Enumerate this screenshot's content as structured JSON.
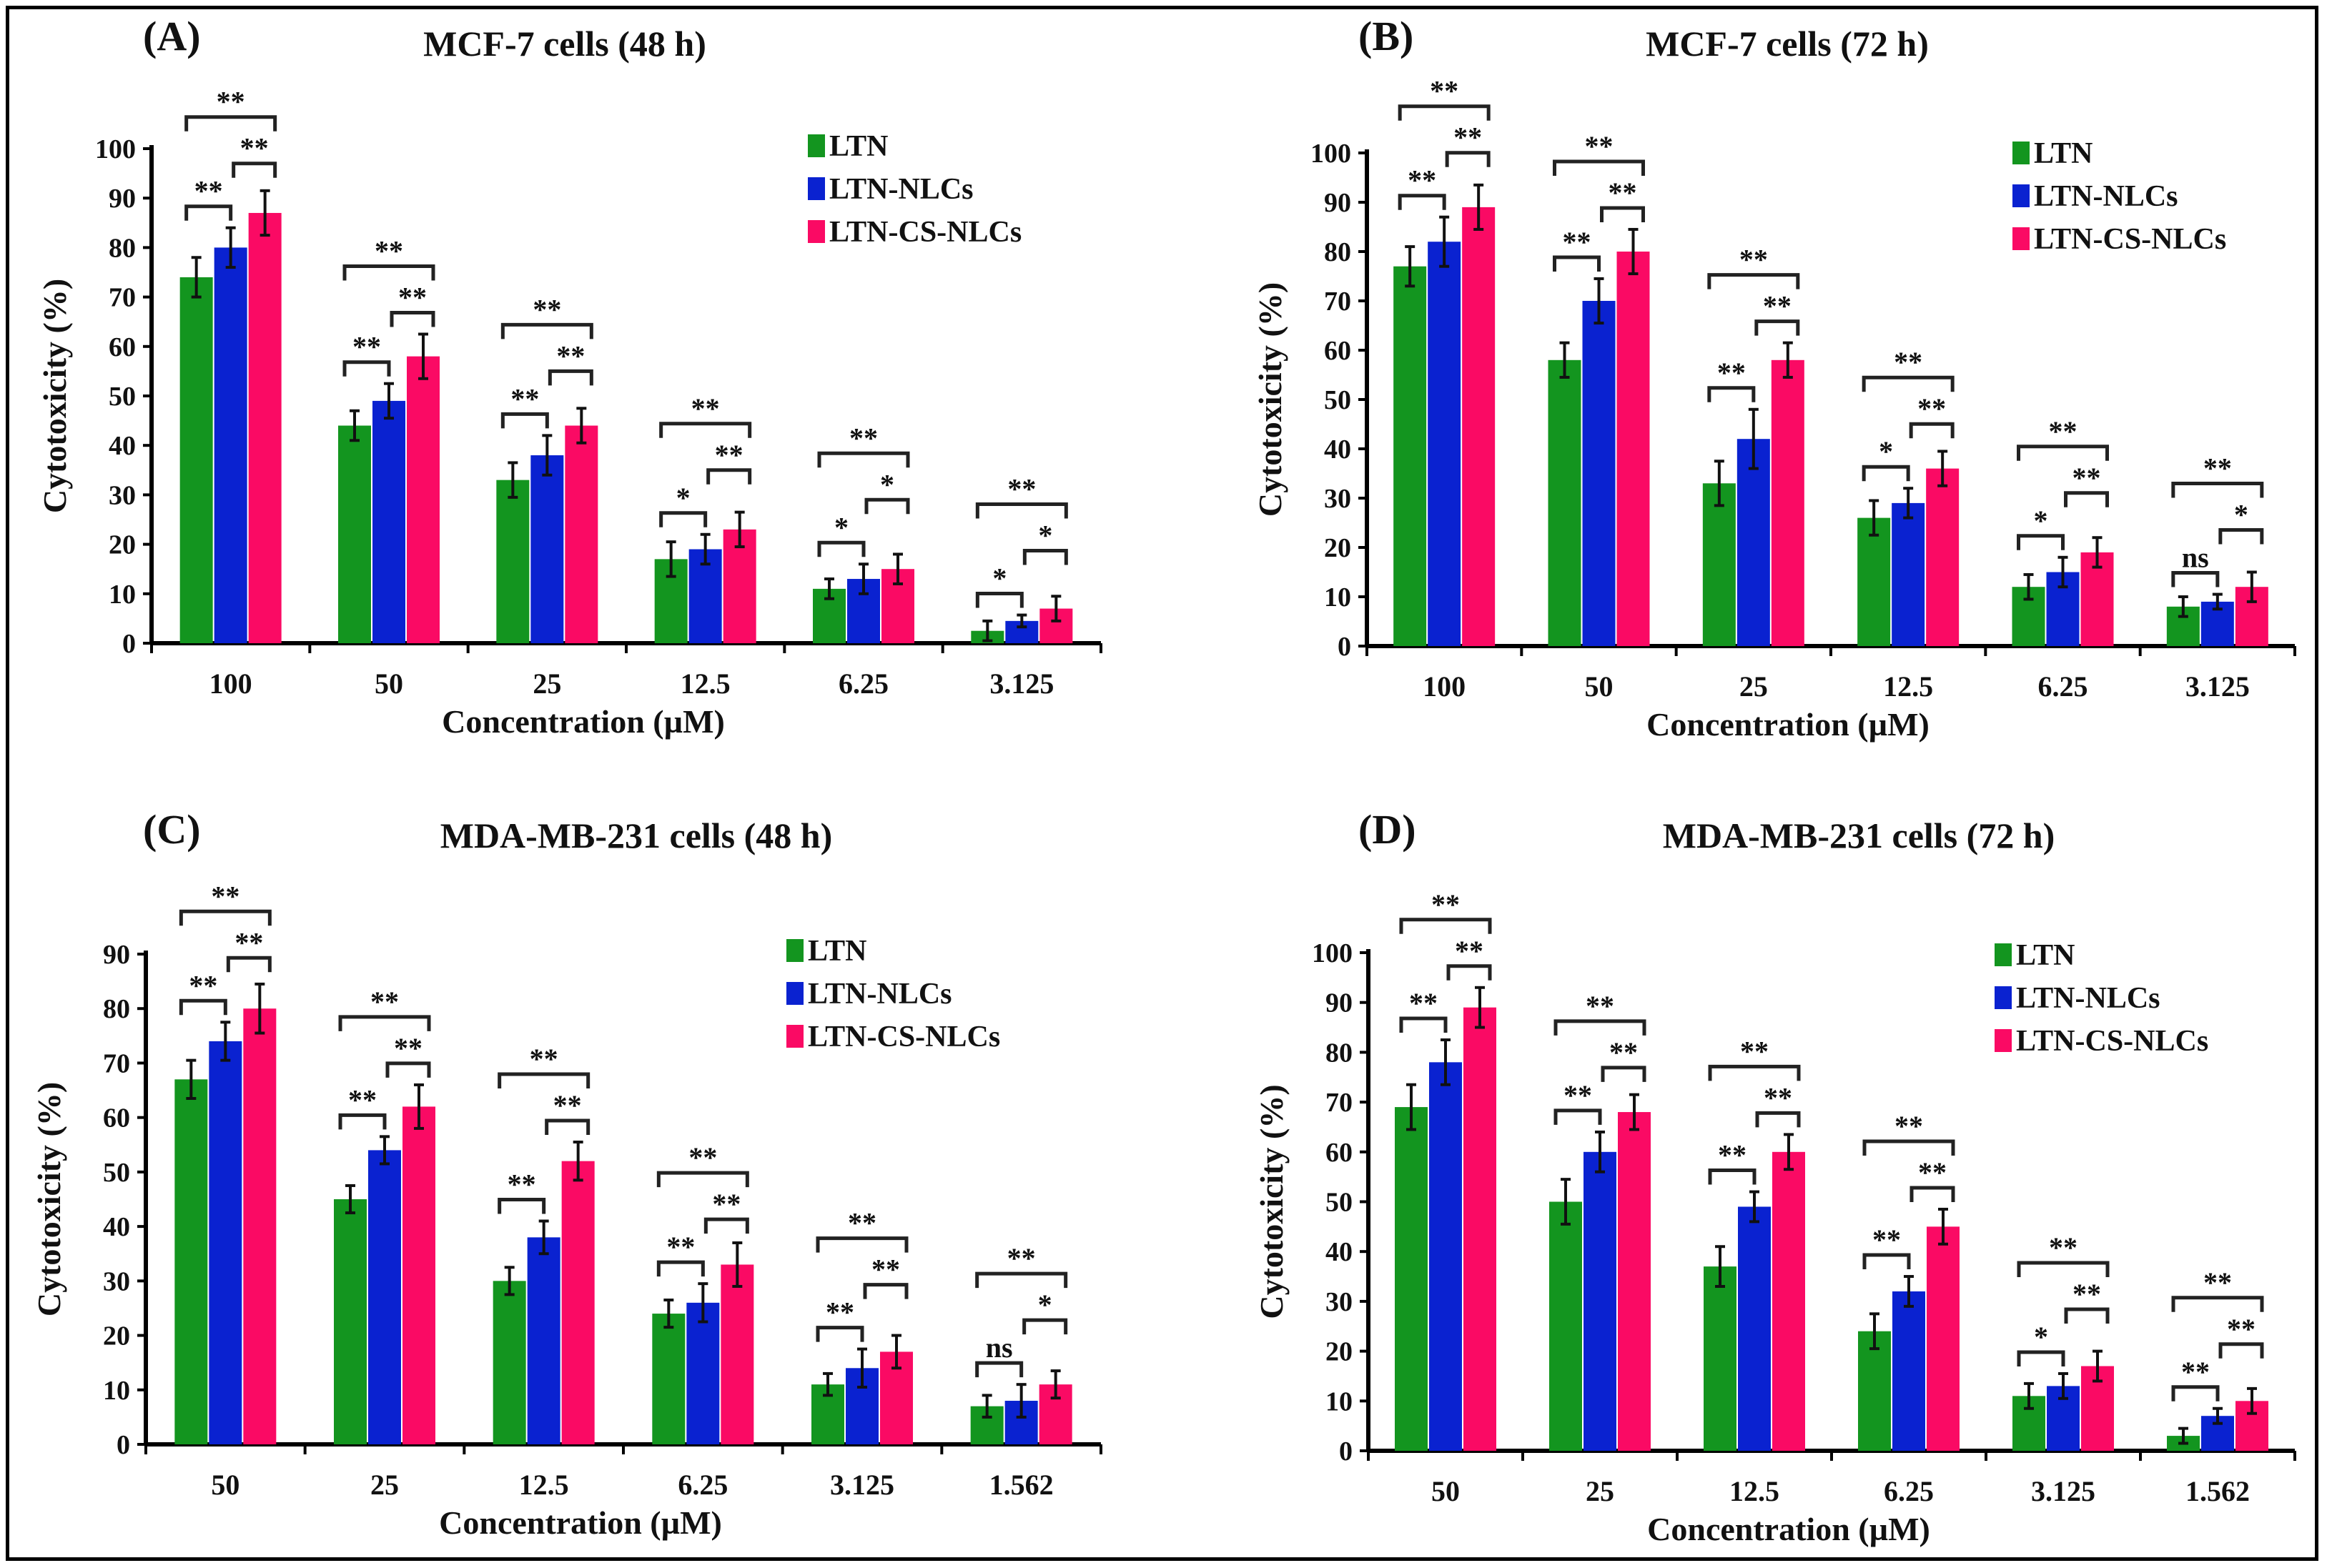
{
  "legend": [
    "LTN",
    "LTN-NLCs",
    "LTN-CS-NLCs"
  ],
  "colors": {
    "LTN": "#13951f",
    "LTN-NLCs": "#0a22d0",
    "LTN-CS-NLCs": "#fa0a64"
  },
  "chart_data": [
    {
      "type": "bar",
      "panel": "(A)",
      "title": "MCF-7 cells (48 h)",
      "xlabel": "Concentration (µM)",
      "ylabel": "Cytotoxicity (%)",
      "ylim": [
        0,
        100
      ],
      "yticks": [
        "0",
        "10",
        "20",
        "30",
        "40",
        "50",
        "60",
        "70",
        "80",
        "90",
        "100"
      ],
      "legend_position": "top-right",
      "categories": [
        "100",
        "50",
        "25",
        "12.5",
        "6.25",
        "3.125"
      ],
      "series": [
        {
          "name": "LTN",
          "values": [
            74,
            44,
            33,
            17,
            11,
            2.5
          ],
          "errors": [
            4,
            3,
            3.5,
            3.5,
            2,
            2
          ]
        },
        {
          "name": "LTN-NLCs",
          "values": [
            80,
            49,
            38,
            19,
            13,
            4.5
          ],
          "errors": [
            4,
            3.5,
            4,
            3,
            3,
            1.2
          ]
        },
        {
          "name": "LTN-CS-NLCs",
          "values": [
            87,
            58,
            44,
            23,
            15,
            7
          ],
          "errors": [
            4.5,
            4.5,
            3.5,
            3.5,
            3,
            2.5
          ]
        }
      ],
      "significance": [
        {
          "ltn_vs_nlc": "**",
          "nlc_vs_cs": "**",
          "ltn_vs_cs": "**"
        },
        {
          "ltn_vs_nlc": "**",
          "nlc_vs_cs": "**",
          "ltn_vs_cs": "**"
        },
        {
          "ltn_vs_nlc": "**",
          "nlc_vs_cs": "**",
          "ltn_vs_cs": "**"
        },
        {
          "ltn_vs_nlc": "*",
          "nlc_vs_cs": "**",
          "ltn_vs_cs": "**"
        },
        {
          "ltn_vs_nlc": "*",
          "nlc_vs_cs": "*",
          "ltn_vs_cs": "**"
        },
        {
          "ltn_vs_nlc": "*",
          "nlc_vs_cs": "*",
          "ltn_vs_cs": "**"
        }
      ]
    },
    {
      "type": "bar",
      "panel": "(B)",
      "title": "MCF-7 cells (72 h)",
      "xlabel": "Concentration (µM)",
      "ylabel": "Cytotoxicity (%)",
      "ylim": [
        0,
        100
      ],
      "yticks": [
        "0",
        "10",
        "20",
        "30",
        "40",
        "50",
        "60",
        "70",
        "80",
        "90",
        "100"
      ],
      "legend_position": "top-right",
      "categories": [
        "100",
        "50",
        "25",
        "12.5",
        "6.25",
        "3.125"
      ],
      "series": [
        {
          "name": "LTN",
          "values": [
            77,
            58,
            33,
            26,
            12,
            8
          ],
          "errors": [
            4,
            3.5,
            4.5,
            3.5,
            2.5,
            2
          ]
        },
        {
          "name": "LTN-NLCs",
          "values": [
            82,
            70,
            42,
            29,
            15,
            9
          ],
          "errors": [
            5,
            4.5,
            6,
            3,
            3,
            1.5
          ]
        },
        {
          "name": "LTN-CS-NLCs",
          "values": [
            89,
            80,
            58,
            36,
            19,
            12
          ],
          "errors": [
            4.5,
            4.5,
            3.5,
            3.5,
            3,
            3
          ]
        }
      ],
      "significance": [
        {
          "ltn_vs_nlc": "**",
          "nlc_vs_cs": "**",
          "ltn_vs_cs": "**"
        },
        {
          "ltn_vs_nlc": "**",
          "nlc_vs_cs": "**",
          "ltn_vs_cs": "**"
        },
        {
          "ltn_vs_nlc": "**",
          "nlc_vs_cs": "**",
          "ltn_vs_cs": "**"
        },
        {
          "ltn_vs_nlc": "*",
          "nlc_vs_cs": "**",
          "ltn_vs_cs": "**"
        },
        {
          "ltn_vs_nlc": "*",
          "nlc_vs_cs": "**",
          "ltn_vs_cs": "**"
        },
        {
          "ltn_vs_nlc": "ns",
          "nlc_vs_cs": "*",
          "ltn_vs_cs": "**"
        }
      ]
    },
    {
      "type": "bar",
      "panel": "(C)",
      "title": "MDA-MB-231 cells (48 h)",
      "xlabel": "Concentration (µM)",
      "ylabel": "Cytotoxicity (%)",
      "ylim": [
        0,
        90
      ],
      "yticks": [
        "0",
        "10",
        "20",
        "30",
        "40",
        "50",
        "60",
        "70",
        "80",
        "90"
      ],
      "legend_position": "top-right",
      "categories": [
        "50",
        "25",
        "12.5",
        "6.25",
        "3.125",
        "1.562"
      ],
      "series": [
        {
          "name": "LTN",
          "values": [
            67,
            45,
            30,
            24,
            11,
            7
          ],
          "errors": [
            3.5,
            2.5,
            2.5,
            2.5,
            2,
            2
          ]
        },
        {
          "name": "LTN-NLCs",
          "values": [
            74,
            54,
            38,
            26,
            14,
            8
          ],
          "errors": [
            3.5,
            2.5,
            3,
            3.5,
            3.5,
            3
          ]
        },
        {
          "name": "LTN-CS-NLCs",
          "values": [
            80,
            62,
            52,
            33,
            17,
            11
          ],
          "errors": [
            4.5,
            4,
            3.5,
            4,
            3,
            2.5
          ]
        }
      ],
      "significance": [
        {
          "ltn_vs_nlc": "**",
          "nlc_vs_cs": "**",
          "ltn_vs_cs": "**"
        },
        {
          "ltn_vs_nlc": "**",
          "nlc_vs_cs": "**",
          "ltn_vs_cs": "**"
        },
        {
          "ltn_vs_nlc": "**",
          "nlc_vs_cs": "**",
          "ltn_vs_cs": "**"
        },
        {
          "ltn_vs_nlc": "**",
          "nlc_vs_cs": "**",
          "ltn_vs_cs": "**"
        },
        {
          "ltn_vs_nlc": "**",
          "nlc_vs_cs": "**",
          "ltn_vs_cs": "**"
        },
        {
          "ltn_vs_nlc": "ns",
          "nlc_vs_cs": "*",
          "ltn_vs_cs": "**"
        }
      ]
    },
    {
      "type": "bar",
      "panel": "(D)",
      "title": "MDA-MB-231 cells (72 h)",
      "xlabel": "Concentration (µM)",
      "ylabel": "Cytotoxicity (%)",
      "ylim": [
        0,
        100
      ],
      "yticks": [
        "0",
        "10",
        "20",
        "30",
        "40",
        "50",
        "60",
        "70",
        "80",
        "90",
        "100"
      ],
      "legend_position": "top-right",
      "categories": [
        "50",
        "25",
        "12.5",
        "6.25",
        "3.125",
        "1.562"
      ],
      "series": [
        {
          "name": "LTN",
          "values": [
            69,
            50,
            37,
            24,
            11,
            3
          ],
          "errors": [
            4.5,
            4.5,
            4,
            3.5,
            2.5,
            1.5
          ]
        },
        {
          "name": "LTN-NLCs",
          "values": [
            78,
            60,
            49,
            32,
            13,
            7
          ],
          "errors": [
            4.5,
            4,
            3,
            3,
            2.5,
            1.5
          ]
        },
        {
          "name": "LTN-CS-NLCs",
          "values": [
            89,
            68,
            60,
            45,
            17,
            10
          ],
          "errors": [
            4,
            3.5,
            3.5,
            3.5,
            3,
            2.5
          ]
        }
      ],
      "significance": [
        {
          "ltn_vs_nlc": "**",
          "nlc_vs_cs": "**",
          "ltn_vs_cs": "**"
        },
        {
          "ltn_vs_nlc": "**",
          "nlc_vs_cs": "**",
          "ltn_vs_cs": "**"
        },
        {
          "ltn_vs_nlc": "**",
          "nlc_vs_cs": "**",
          "ltn_vs_cs": "**"
        },
        {
          "ltn_vs_nlc": "**",
          "nlc_vs_cs": "**",
          "ltn_vs_cs": "**"
        },
        {
          "ltn_vs_nlc": "*",
          "nlc_vs_cs": "**",
          "ltn_vs_cs": "**"
        },
        {
          "ltn_vs_nlc": "**",
          "nlc_vs_cs": "**",
          "ltn_vs_cs": "**"
        }
      ]
    }
  ]
}
